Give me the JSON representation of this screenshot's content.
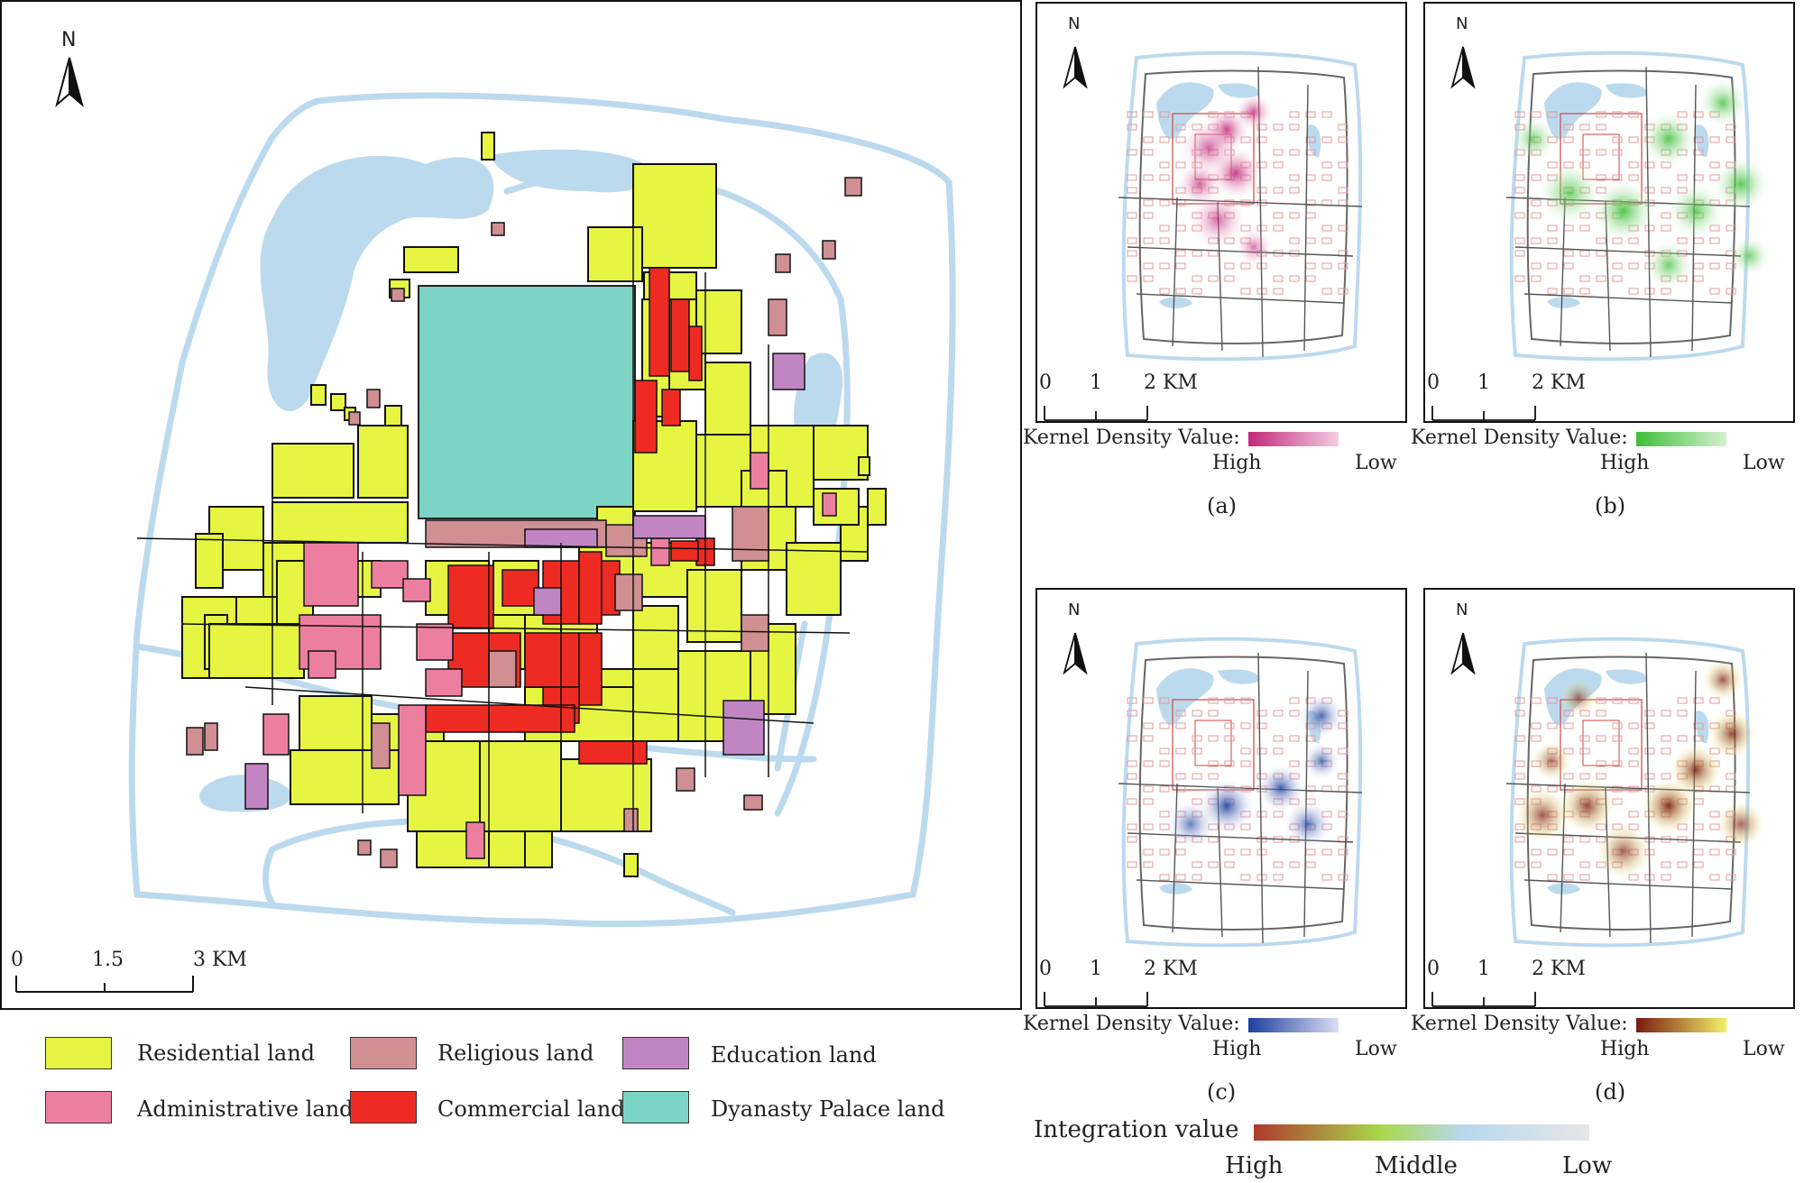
{
  "main_map": {
    "north": "N",
    "scale": {
      "ticks": [
        "0",
        "1.5",
        "3 KM"
      ]
    }
  },
  "legend": [
    {
      "label": "Residential land",
      "color": "#e6f542"
    },
    {
      "label": "Religious land",
      "color": "#cf8f93"
    },
    {
      "label": "Education land",
      "color": "#c285c4"
    },
    {
      "label": "Administrative land",
      "color": "#ec7fa0"
    },
    {
      "label": "Commercial land",
      "color": "#ee2b22"
    },
    {
      "label": "Dyanasty Palace land",
      "color": "#7bd3c4"
    }
  ],
  "panels": [
    {
      "caption": "(a)",
      "north": "N",
      "scale_ticks": [
        "0",
        "1",
        "2 KM"
      ],
      "density_label": "Kernel Density Value:",
      "high": "High",
      "low": "Low",
      "high_color": "#c2297a",
      "low_color": "#f3cde2"
    },
    {
      "caption": "(b)",
      "north": "N",
      "scale_ticks": [
        "0",
        "1",
        "2 KM"
      ],
      "density_label": "Kernel Density Value:",
      "high": "High",
      "low": "Low",
      "high_color": "#3fbf3a",
      "low_color": "#d4f0d0"
    },
    {
      "caption": "(c)",
      "north": "N",
      "scale_ticks": [
        "0",
        "1",
        "2 KM"
      ],
      "density_label": "Kernel Density Value:",
      "high": "High",
      "low": "Low",
      "high_color": "#1d3e9e",
      "low_color": "#dcdff3"
    },
    {
      "caption": "(d)",
      "north": "N",
      "scale_ticks": [
        "0",
        "1",
        "2 KM"
      ],
      "density_label": "Kernel Density Value:",
      "high": "High",
      "low": "Low",
      "high_color": "#7a1a10",
      "low_color": "#f3f06a"
    }
  ],
  "integration": {
    "title": "Integration value",
    "high": "High",
    "middle": "Middle",
    "low": "Low",
    "colors": [
      "#b03a2e",
      "#a8d84a",
      "#b7d8ee",
      "#e6e6e6"
    ]
  },
  "colors": {
    "water": "#bcdaee",
    "road": "#444444"
  }
}
